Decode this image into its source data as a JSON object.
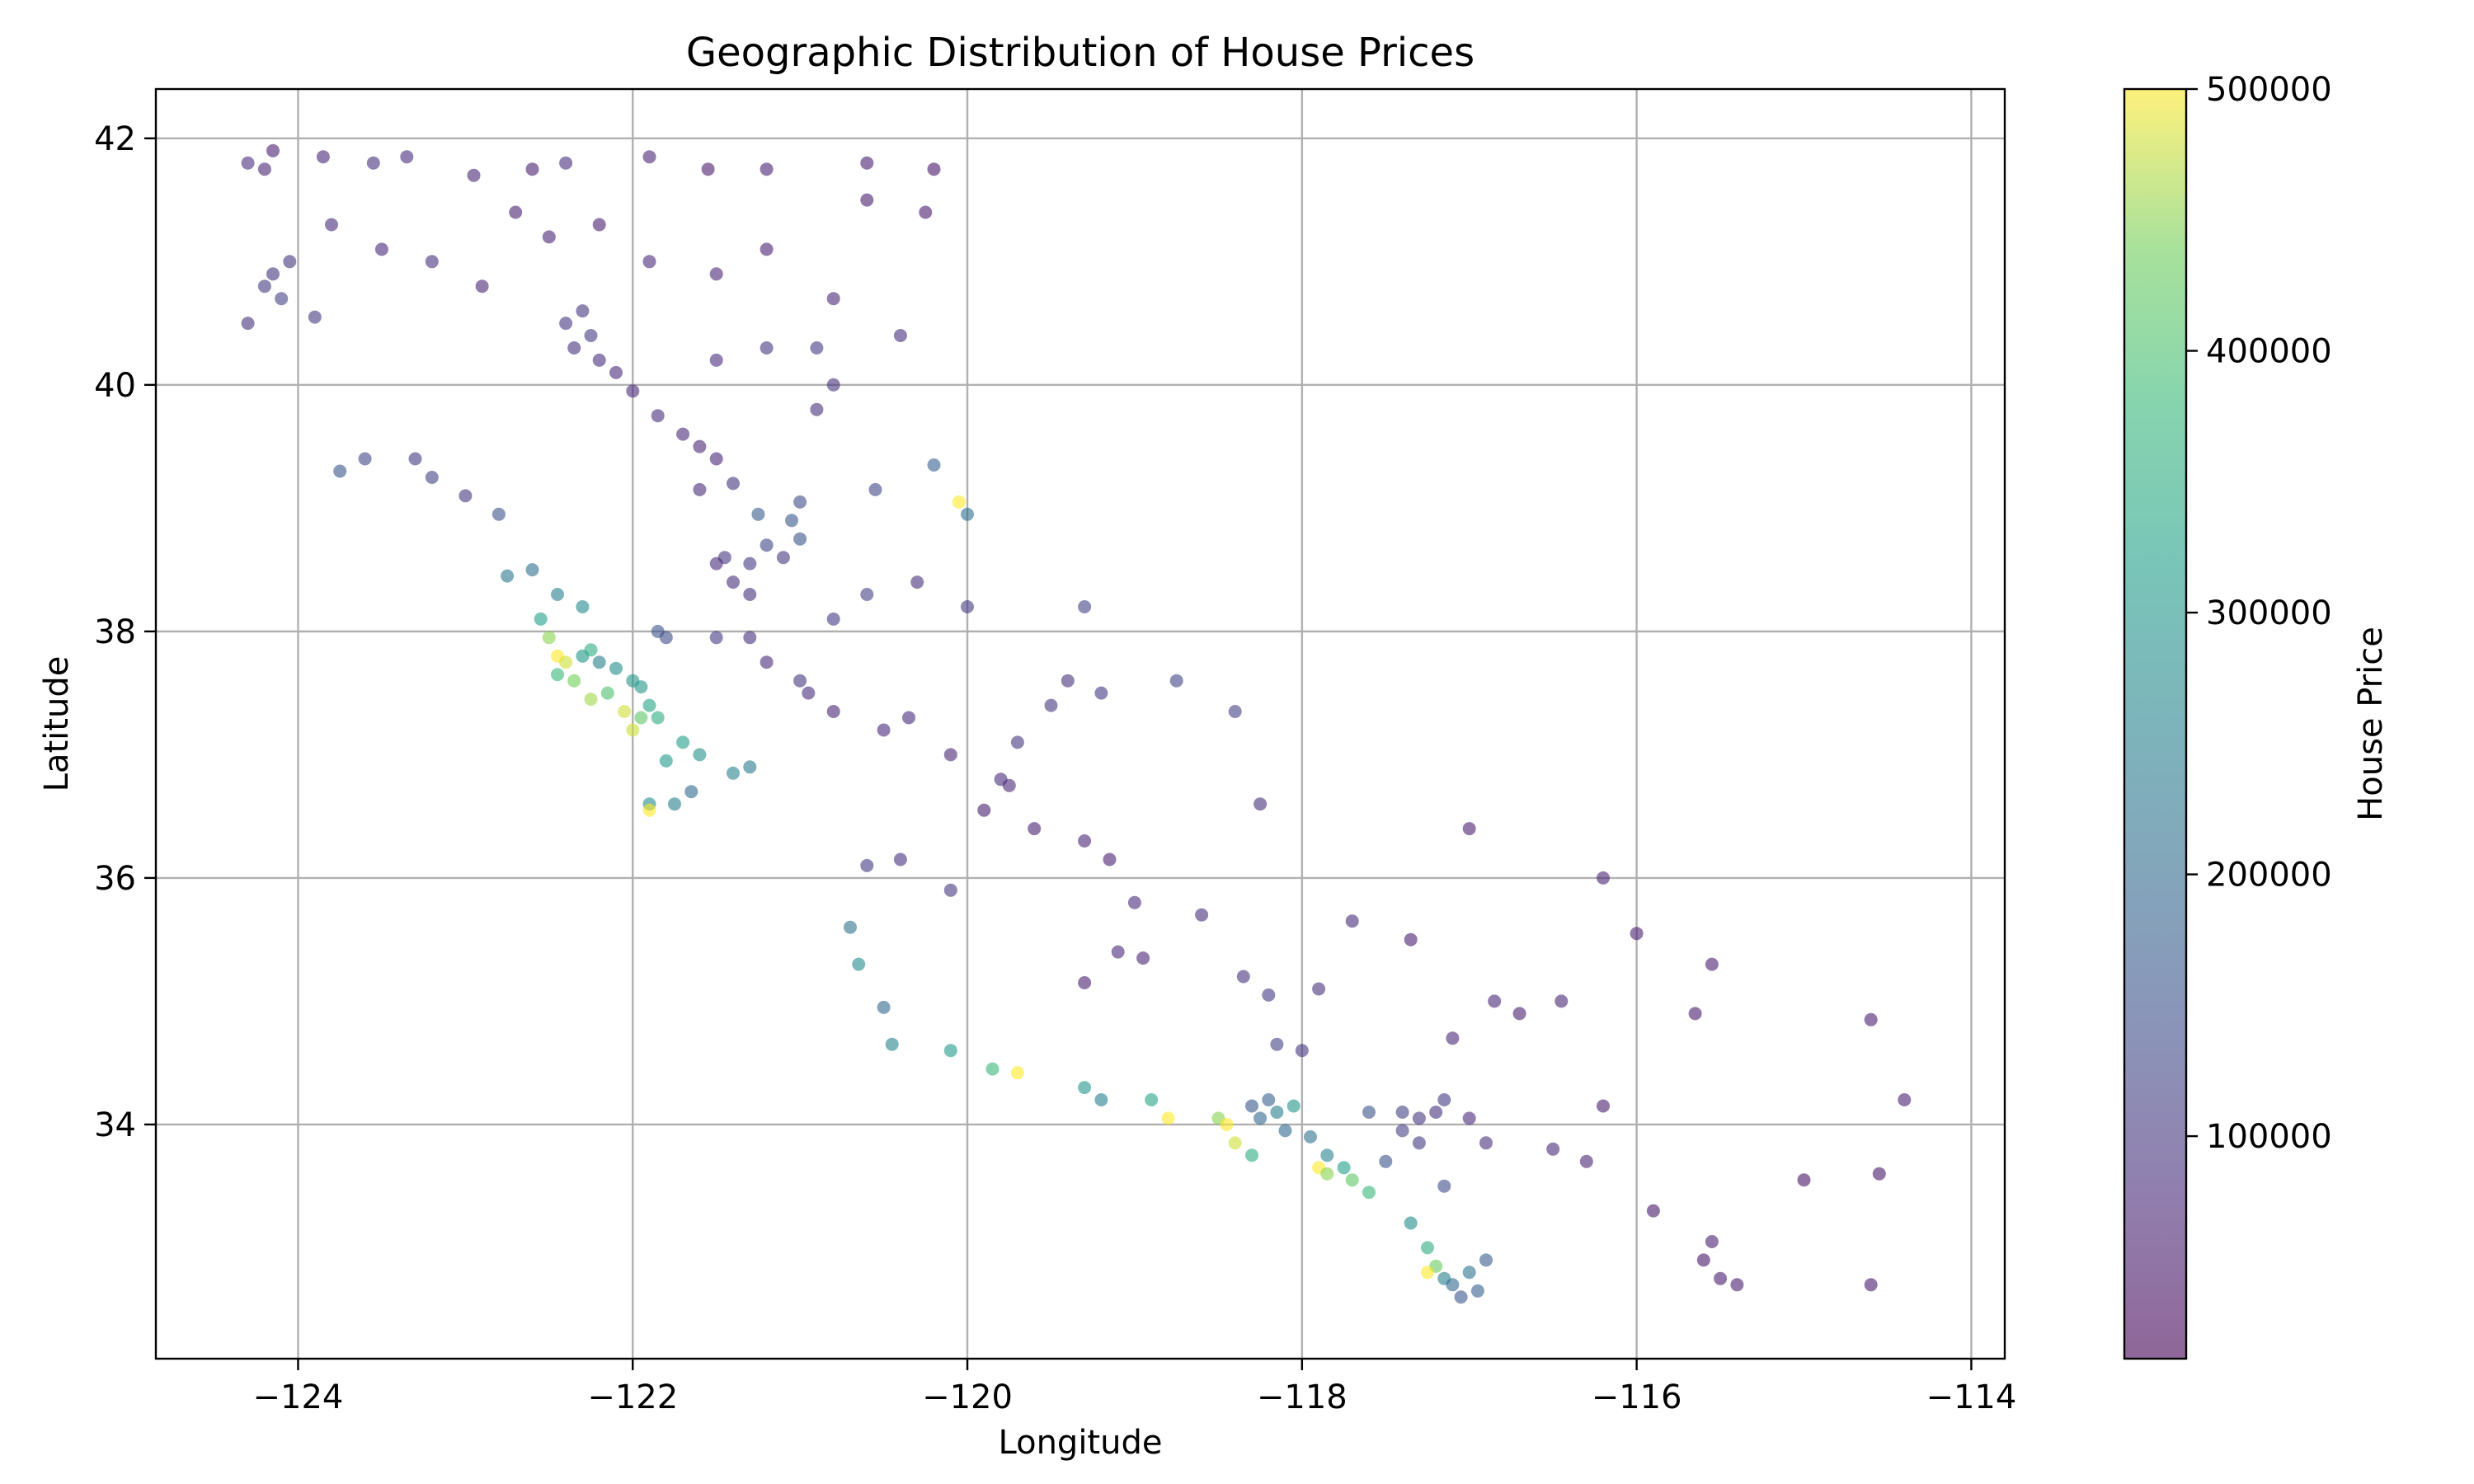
{
  "chart_data": {
    "type": "scatter",
    "title": "Geographic Distribution of House Prices",
    "xlabel": "Longitude",
    "ylabel": "Latitude",
    "xlim": [
      -124.85,
      -113.8
    ],
    "ylim": [
      32.1,
      42.4
    ],
    "xticks": [
      -124,
      -122,
      -120,
      -118,
      -116,
      -114
    ],
    "xtick_labels": [
      "−124",
      "−122",
      "−120",
      "−118",
      "−116",
      "−114"
    ],
    "yticks": [
      34,
      36,
      38,
      40,
      42
    ],
    "ytick_labels": [
      "34",
      "36",
      "38",
      "40",
      "42"
    ],
    "grid": true,
    "colormap": "viridis",
    "point_alpha": 0.6,
    "colorbar": {
      "label": "House Price",
      "range": [
        14999,
        500001
      ],
      "ticks": [
        100000,
        200000,
        300000,
        400000,
        500000
      ],
      "tick_labels": [
        "100000",
        "200000",
        "300000",
        "400000",
        "500000"
      ]
    },
    "series": [
      {
        "points": [
          [
            -124.3,
            41.8,
            85000
          ],
          [
            -124.2,
            41.75,
            70000
          ],
          [
            -124.15,
            41.9,
            60000
          ],
          [
            -123.85,
            41.85,
            75000
          ],
          [
            -123.55,
            41.8,
            90000
          ],
          [
            -123.35,
            41.85,
            80000
          ],
          [
            -122.95,
            41.7,
            70000
          ],
          [
            -122.6,
            41.75,
            60000
          ],
          [
            -122.4,
            41.8,
            85000
          ],
          [
            -121.9,
            41.85,
            70000
          ],
          [
            -121.55,
            41.75,
            55000
          ],
          [
            -121.2,
            41.75,
            65000
          ],
          [
            -120.6,
            41.8,
            60000
          ],
          [
            -120.2,
            41.75,
            50000
          ],
          [
            -124.2,
            40.8,
            110000
          ],
          [
            -124.1,
            40.7,
            120000
          ],
          [
            -124.15,
            40.9,
            95000
          ],
          [
            -124.05,
            41.0,
            100000
          ],
          [
            -123.9,
            40.55,
            105000
          ],
          [
            -124.3,
            40.5,
            90000
          ],
          [
            -123.8,
            41.3,
            80000
          ],
          [
            -123.5,
            41.1,
            75000
          ],
          [
            -123.2,
            41.0,
            90000
          ],
          [
            -122.9,
            40.8,
            70000
          ],
          [
            -122.7,
            41.4,
            65000
          ],
          [
            -122.5,
            41.2,
            70000
          ],
          [
            -122.2,
            41.3,
            60000
          ],
          [
            -121.9,
            41.0,
            80000
          ],
          [
            -121.5,
            40.9,
            70000
          ],
          [
            -121.2,
            41.1,
            65000
          ],
          [
            -120.8,
            40.7,
            75000
          ],
          [
            -120.4,
            40.4,
            85000
          ],
          [
            -120.6,
            41.5,
            60000
          ],
          [
            -120.25,
            41.4,
            55000
          ],
          [
            -122.3,
            40.6,
            95000
          ],
          [
            -122.4,
            40.5,
            100000
          ],
          [
            -122.25,
            40.4,
            110000
          ],
          [
            -122.35,
            40.3,
            90000
          ],
          [
            -122.2,
            40.2,
            85000
          ],
          [
            -122.1,
            40.1,
            80000
          ],
          [
            -122.0,
            39.95,
            75000
          ],
          [
            -121.85,
            39.75,
            85000
          ],
          [
            -121.7,
            39.6,
            80000
          ],
          [
            -121.6,
            39.5,
            70000
          ],
          [
            -121.5,
            39.4,
            75000
          ],
          [
            -121.6,
            39.15,
            80000
          ],
          [
            -121.4,
            39.2,
            95000
          ],
          [
            -123.3,
            39.4,
            110000
          ],
          [
            -123.2,
            39.25,
            120000
          ],
          [
            -123.0,
            39.1,
            100000
          ],
          [
            -122.8,
            38.95,
            150000
          ],
          [
            -123.6,
            39.4,
            130000
          ],
          [
            -123.75,
            39.3,
            160000
          ],
          [
            -122.6,
            38.5,
            210000
          ],
          [
            -122.75,
            38.45,
            230000
          ],
          [
            -122.45,
            38.3,
            250000
          ],
          [
            -122.3,
            38.2,
            270000
          ],
          [
            -122.55,
            38.1,
            320000
          ],
          [
            -122.5,
            37.95,
            450000
          ],
          [
            -122.45,
            37.8,
            500001
          ],
          [
            -122.4,
            37.75,
            480000
          ],
          [
            -122.3,
            37.8,
            300000
          ],
          [
            -122.25,
            37.85,
            350000
          ],
          [
            -122.2,
            37.75,
            250000
          ],
          [
            -122.1,
            37.7,
            280000
          ],
          [
            -122.0,
            37.6,
            300000
          ],
          [
            -122.15,
            37.5,
            400000
          ],
          [
            -122.25,
            37.45,
            460000
          ],
          [
            -122.05,
            37.35,
            480000
          ],
          [
            -121.95,
            37.3,
            420000
          ],
          [
            -121.85,
            37.3,
            350000
          ],
          [
            -121.9,
            37.4,
            330000
          ],
          [
            -121.95,
            37.55,
            300000
          ],
          [
            -122.35,
            37.6,
            440000
          ],
          [
            -122.45,
            37.65,
            380000
          ],
          [
            -122.0,
            37.2,
            480000
          ],
          [
            -121.7,
            37.1,
            320000
          ],
          [
            -121.6,
            37.0,
            290000
          ],
          [
            -121.8,
            36.95,
            310000
          ],
          [
            -121.9,
            36.6,
            280000
          ],
          [
            -121.75,
            36.6,
            250000
          ],
          [
            -121.9,
            36.55,
            500001
          ],
          [
            -121.65,
            36.7,
            200000
          ],
          [
            -121.4,
            36.85,
            260000
          ],
          [
            -121.3,
            36.9,
            240000
          ],
          [
            -121.85,
            38.0,
            150000
          ],
          [
            -121.8,
            37.95,
            140000
          ],
          [
            -121.5,
            37.95,
            110000
          ],
          [
            -121.3,
            37.95,
            90000
          ],
          [
            -121.3,
            38.55,
            110000
          ],
          [
            -121.45,
            38.6,
            100000
          ],
          [
            -121.2,
            38.7,
            130000
          ],
          [
            -121.0,
            38.75,
            150000
          ],
          [
            -121.1,
            38.6,
            100000
          ],
          [
            -121.4,
            38.4,
            90000
          ],
          [
            -121.5,
            38.55,
            80000
          ],
          [
            -121.3,
            38.3,
            90000
          ],
          [
            -121.0,
            37.6,
            100000
          ],
          [
            -121.2,
            37.75,
            80000
          ],
          [
            -120.95,
            37.5,
            85000
          ],
          [
            -120.8,
            37.35,
            70000
          ],
          [
            -120.5,
            37.2,
            75000
          ],
          [
            -120.35,
            37.3,
            80000
          ],
          [
            -120.1,
            37.0,
            70000
          ],
          [
            -119.8,
            36.8,
            80000
          ],
          [
            -119.75,
            36.75,
            75000
          ],
          [
            -119.9,
            36.55,
            60000
          ],
          [
            -119.6,
            36.4,
            65000
          ],
          [
            -119.3,
            36.3,
            70000
          ],
          [
            -119.15,
            36.15,
            60000
          ],
          [
            -119.0,
            35.8,
            80000
          ],
          [
            -119.1,
            35.4,
            75000
          ],
          [
            -118.95,
            35.35,
            70000
          ],
          [
            -119.3,
            35.15,
            60000
          ],
          [
            -118.6,
            35.7,
            85000
          ],
          [
            -118.35,
            35.2,
            90000
          ],
          [
            -118.2,
            35.05,
            110000
          ],
          [
            -120.55,
            39.15,
            130000
          ],
          [
            -120.2,
            39.35,
            180000
          ],
          [
            -120.0,
            38.95,
            210000
          ],
          [
            -120.05,
            39.05,
            500001
          ],
          [
            -120.3,
            38.4,
            90000
          ],
          [
            -120.0,
            38.2,
            110000
          ],
          [
            -119.5,
            37.4,
            100000
          ],
          [
            -119.3,
            38.2,
            120000
          ],
          [
            -118.75,
            37.6,
            130000
          ],
          [
            -118.4,
            37.35,
            120000
          ],
          [
            -118.25,
            36.6,
            90000
          ],
          [
            -120.7,
            35.6,
            220000
          ],
          [
            -120.65,
            35.3,
            280000
          ],
          [
            -120.5,
            34.95,
            200000
          ],
          [
            -120.45,
            34.65,
            260000
          ],
          [
            -120.1,
            34.6,
            310000
          ],
          [
            -119.85,
            34.45,
            380000
          ],
          [
            -119.7,
            34.42,
            500001
          ],
          [
            -119.3,
            34.3,
            300000
          ],
          [
            -119.2,
            34.2,
            250000
          ],
          [
            -118.9,
            34.2,
            330000
          ],
          [
            -118.8,
            34.05,
            500001
          ],
          [
            -118.5,
            34.05,
            450000
          ],
          [
            -118.45,
            34.0,
            500001
          ],
          [
            -118.4,
            33.85,
            480000
          ],
          [
            -118.3,
            33.75,
            350000
          ],
          [
            -118.25,
            34.05,
            200000
          ],
          [
            -118.15,
            34.1,
            250000
          ],
          [
            -118.05,
            34.15,
            300000
          ],
          [
            -118.1,
            33.95,
            200000
          ],
          [
            -117.95,
            33.9,
            220000
          ],
          [
            -117.85,
            33.75,
            260000
          ],
          [
            -117.75,
            33.65,
            320000
          ],
          [
            -117.9,
            33.65,
            500001
          ],
          [
            -117.85,
            33.6,
            450000
          ],
          [
            -117.7,
            33.55,
            420000
          ],
          [
            -117.6,
            33.45,
            380000
          ],
          [
            -117.35,
            33.2,
            280000
          ],
          [
            -117.25,
            33.0,
            350000
          ],
          [
            -117.2,
            32.85,
            430000
          ],
          [
            -117.25,
            32.8,
            500001
          ],
          [
            -117.15,
            32.75,
            250000
          ],
          [
            -117.1,
            32.7,
            200000
          ],
          [
            -117.05,
            32.6,
            160000
          ],
          [
            -116.95,
            32.65,
            180000
          ],
          [
            -117.0,
            32.8,
            220000
          ],
          [
            -116.9,
            32.9,
            170000
          ],
          [
            -118.3,
            34.15,
            160000
          ],
          [
            -118.2,
            34.2,
            180000
          ],
          [
            -118.15,
            34.65,
            120000
          ],
          [
            -118.0,
            34.6,
            100000
          ],
          [
            -117.6,
            34.1,
            150000
          ],
          [
            -117.4,
            34.1,
            120000
          ],
          [
            -117.3,
            34.05,
            100000
          ],
          [
            -117.2,
            34.1,
            90000
          ],
          [
            -117.15,
            34.2,
            110000
          ],
          [
            -117.0,
            34.05,
            80000
          ],
          [
            -116.9,
            33.85,
            90000
          ],
          [
            -117.3,
            33.85,
            110000
          ],
          [
            -117.4,
            33.95,
            120000
          ],
          [
            -117.5,
            33.7,
            150000
          ],
          [
            -117.15,
            33.5,
            140000
          ],
          [
            -116.5,
            33.8,
            80000
          ],
          [
            -116.3,
            33.7,
            70000
          ],
          [
            -116.2,
            34.15,
            60000
          ],
          [
            -115.9,
            33.3,
            50000
          ],
          [
            -115.55,
            33.05,
            60000
          ],
          [
            -115.5,
            32.75,
            55000
          ],
          [
            -115.4,
            32.7,
            60000
          ],
          [
            -115.6,
            32.9,
            50000
          ],
          [
            -114.6,
            32.7,
            55000
          ],
          [
            -114.6,
            34.85,
            60000
          ],
          [
            -114.4,
            34.2,
            65000
          ],
          [
            -114.55,
            33.6,
            50000
          ],
          [
            -115.0,
            33.55,
            45000
          ],
          [
            -116.85,
            35.0,
            70000
          ],
          [
            -116.7,
            34.9,
            60000
          ],
          [
            -116.45,
            35.0,
            70000
          ],
          [
            -117.1,
            34.7,
            75000
          ],
          [
            -117.35,
            35.5,
            60000
          ],
          [
            -117.7,
            35.65,
            80000
          ],
          [
            -117.9,
            35.1,
            90000
          ],
          [
            -116.2,
            36.0,
            70000
          ],
          [
            -117.0,
            36.4,
            60000
          ],
          [
            -115.65,
            34.9,
            55000
          ],
          [
            -115.55,
            35.3,
            60000
          ],
          [
            -116.0,
            35.55,
            65000
          ],
          [
            -119.4,
            37.6,
            90000
          ],
          [
            -119.2,
            37.5,
            110000
          ],
          [
            -119.7,
            37.1,
            100000
          ],
          [
            -120.6,
            36.1,
            110000
          ],
          [
            -120.4,
            36.15,
            90000
          ],
          [
            -120.1,
            35.9,
            100000
          ],
          [
            -120.8,
            38.1,
            110000
          ],
          [
            -120.6,
            38.3,
            120000
          ],
          [
            -120.9,
            39.8,
            90000
          ],
          [
            -121.2,
            40.3,
            100000
          ],
          [
            -120.9,
            40.3,
            110000
          ],
          [
            -120.8,
            40.0,
            90000
          ],
          [
            -121.5,
            40.2,
            85000
          ],
          [
            -121.0,
            39.05,
            140000
          ],
          [
            -121.05,
            38.9,
            160000
          ],
          [
            -121.25,
            38.95,
            170000
          ]
        ]
      }
    ]
  }
}
